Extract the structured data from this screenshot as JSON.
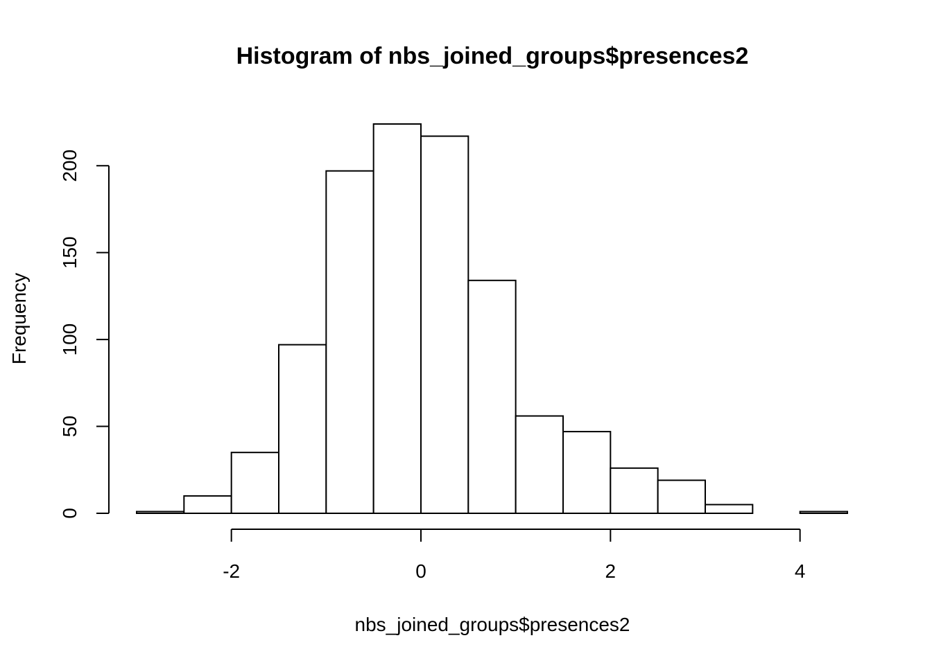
{
  "chart_data": {
    "type": "bar",
    "title": "Histogram of nbs_joined_groups$presences2",
    "xlabel": "nbs_joined_groups$presences2",
    "ylabel": "Frequency",
    "bins": [
      {
        "x0": -3.0,
        "x1": -2.5,
        "count": 1
      },
      {
        "x0": -2.5,
        "x1": -2.0,
        "count": 10
      },
      {
        "x0": -2.0,
        "x1": -1.5,
        "count": 35
      },
      {
        "x0": -1.5,
        "x1": -1.0,
        "count": 97
      },
      {
        "x0": -1.0,
        "x1": -0.5,
        "count": 197
      },
      {
        "x0": -0.5,
        "x1": 0.0,
        "count": 224
      },
      {
        "x0": 0.0,
        "x1": 0.5,
        "count": 217
      },
      {
        "x0": 0.5,
        "x1": 1.0,
        "count": 134
      },
      {
        "x0": 1.0,
        "x1": 1.5,
        "count": 56
      },
      {
        "x0": 1.5,
        "x1": 2.0,
        "count": 47
      },
      {
        "x0": 2.0,
        "x1": 2.5,
        "count": 26
      },
      {
        "x0": 2.5,
        "x1": 3.0,
        "count": 19
      },
      {
        "x0": 3.0,
        "x1": 3.5,
        "count": 5
      },
      {
        "x0": 3.5,
        "x1": 4.0,
        "count": 0
      },
      {
        "x0": 4.0,
        "x1": 4.5,
        "count": 1
      }
    ],
    "xlim": [
      -3.0,
      4.5
    ],
    "ylim": [
      0,
      224
    ],
    "x_ticks": [
      -2,
      0,
      2,
      4
    ],
    "x_tick_labels": [
      "-2",
      "0",
      "2",
      "4"
    ],
    "y_ticks": [
      0,
      50,
      100,
      150,
      200
    ],
    "y_tick_labels": [
      "0",
      "50",
      "100",
      "150",
      "200"
    ],
    "grid": false,
    "legend": "none"
  }
}
